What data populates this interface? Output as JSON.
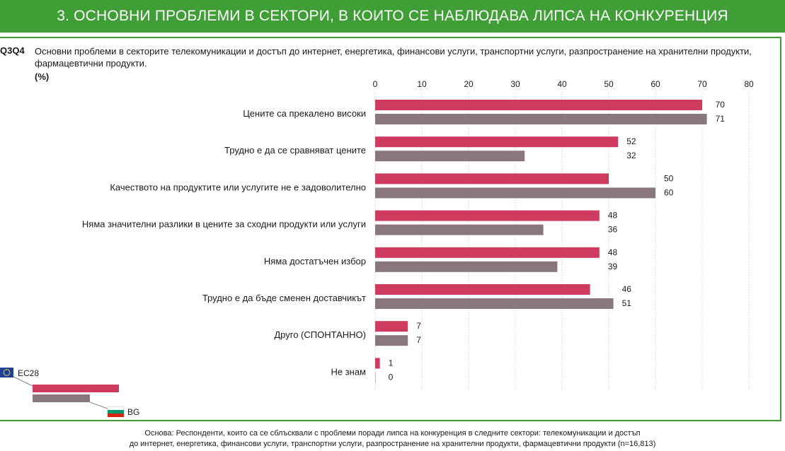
{
  "header": {
    "title": "3. ОСНОВНИ ПРОБЛЕМИ В СЕКТОРИ, В КОИТО СЕ НАБЛЮДАВА ЛИПСА НА КОНКУРЕНЦИЯ"
  },
  "question": {
    "code": "Q3Q4",
    "text": "Основни проблеми в секторите телекомуникации и достъп до интернет, енергетика, финансови услуги, транспортни услуги, разпространение на хранителни продукти, фармацевтични продукти.",
    "unit": "(%)"
  },
  "colors": {
    "eu28": "#cf3a5f",
    "bg": "#8a777b",
    "green": "#3f9e36"
  },
  "chart_data": {
    "type": "bar",
    "orientation": "horizontal",
    "categories": [
      "Цените са прекалено високи",
      "Трудно е да се сравняват цените",
      "Качеството на продуктите или услугите не е задоволително",
      "Няма значителни разлики в цените за сходни продукти или услуги",
      "Няма достатъчен избор",
      "Трудно е да бъде сменен доставчикът",
      "Друго (СПОНТАННО)",
      "Не знам"
    ],
    "series": [
      {
        "name": "EC28",
        "values": [
          70,
          52,
          50,
          48,
          48,
          46,
          7,
          1
        ]
      },
      {
        "name": "BG",
        "values": [
          71,
          32,
          60,
          36,
          39,
          51,
          7,
          0
        ]
      }
    ],
    "xlim": [
      0,
      80
    ],
    "xticks": [
      0,
      10,
      20,
      30,
      40,
      50,
      60,
      70,
      80
    ],
    "grid": true,
    "legend": "bottom-left"
  },
  "footnote": {
    "line1": "Основа: Респонденти, които са се сблъсквали с проблеми поради липса на конкуренция в следните сектори: телекомуникации и достъп",
    "line2": "до интернет, енергетика, финансови услуги, транспортни услуги, разпространение на хранителни продукти, фармацевтични продукти (n=16,813)"
  }
}
